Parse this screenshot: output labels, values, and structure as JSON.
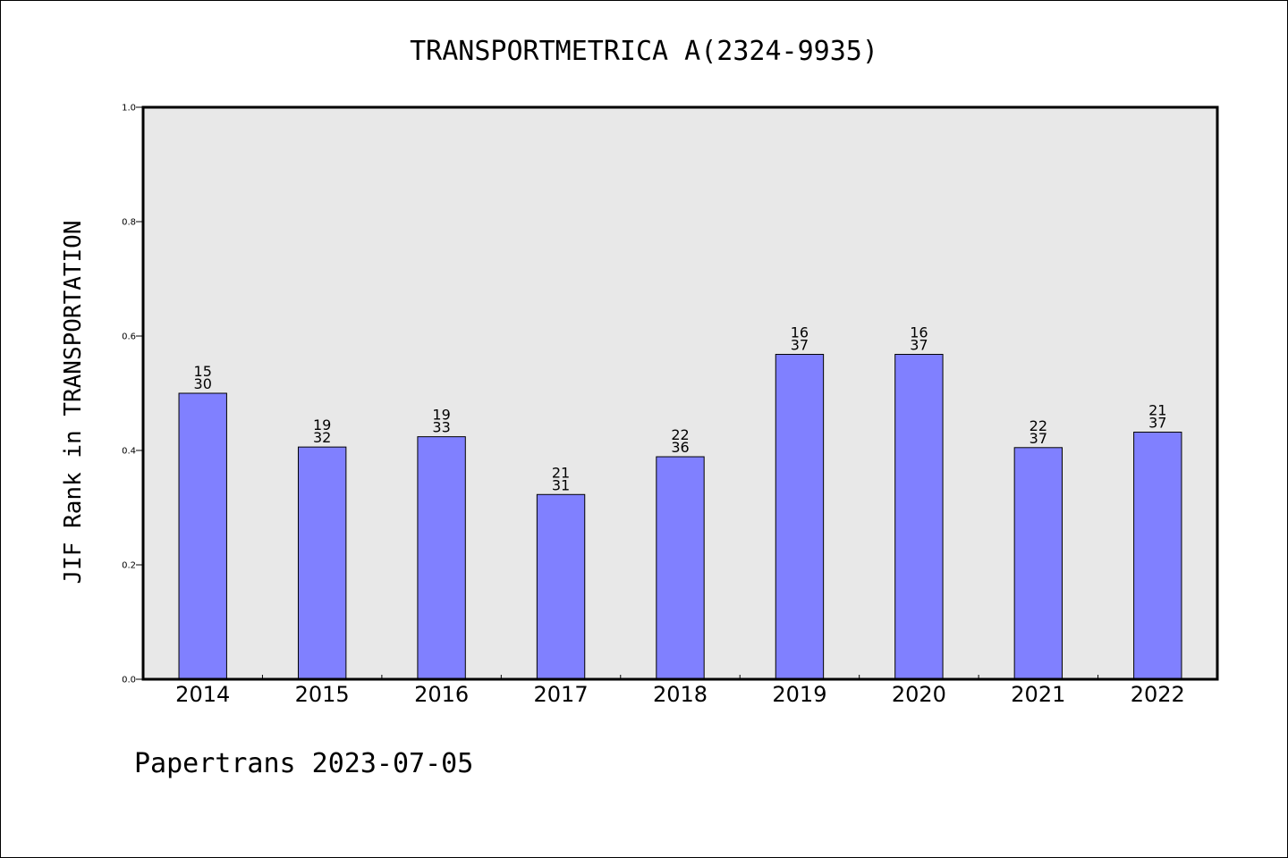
{
  "chart_data": {
    "type": "bar",
    "title": "TRANSPORTMETRICA A(2324-9935)",
    "ylabel": "JIF Rank in TRANSPORTATION",
    "xlabel": "",
    "ylim": [
      0.0,
      1.0
    ],
    "yticks": [
      "0.0",
      "0.2",
      "0.4",
      "0.6",
      "0.8",
      "1.0"
    ],
    "categories": [
      "2014",
      "2015",
      "2016",
      "2017",
      "2018",
      "2019",
      "2020",
      "2021",
      "2022"
    ],
    "values": [
      0.5,
      0.406,
      0.424,
      0.323,
      0.389,
      0.568,
      0.568,
      0.405,
      0.432
    ],
    "rank": [
      "15",
      "19",
      "19",
      "21",
      "22",
      "16",
      "16",
      "22",
      "21"
    ],
    "total": [
      "30",
      "32",
      "33",
      "31",
      "36",
      "37",
      "37",
      "37",
      "37"
    ],
    "bar_color": "#8080ff",
    "plot_background": "#e8e8e8",
    "grid": false
  },
  "footer": "Papertrans 2023-07-05"
}
